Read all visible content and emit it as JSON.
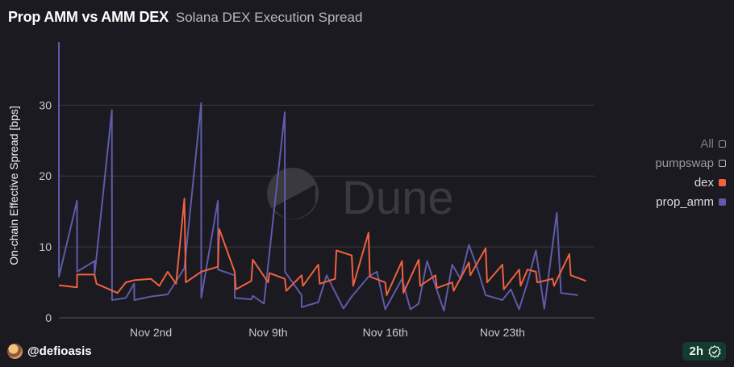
{
  "header": {
    "title": "Prop AMM vs AMM DEX",
    "subtitle": "Solana DEX Execution Spread"
  },
  "watermark": {
    "text": "Dune"
  },
  "legend": {
    "all": "All",
    "items": [
      "pumpswap",
      "dex",
      "prop_amm"
    ]
  },
  "footer": {
    "username": "@defioasis",
    "badge": "2h",
    "badge_icon": "check-shield-icon"
  },
  "colors": {
    "dex": "#f06140",
    "prop_amm": "#5f5ba8",
    "pumpswap": "#b8b8c4"
  },
  "chart_data": {
    "type": "line",
    "ylabel": "On-chain Effective Spread [bps]",
    "xlabel": "",
    "ylim": [
      0,
      38
    ],
    "yticks": [
      0,
      10,
      20,
      30
    ],
    "xlim": [
      "2025-10-28",
      "2025-11-29"
    ],
    "xticks": [
      {
        "date": "2025-11-02",
        "label": "Nov 2nd"
      },
      {
        "date": "2025-11-09",
        "label": "Nov 9th"
      },
      {
        "date": "2025-11-16",
        "label": "Nov 16th"
      },
      {
        "date": "2025-11-23",
        "label": "Nov 23th"
      }
    ],
    "grid": true,
    "legend_position": "right",
    "series": [
      {
        "name": "prop_amm",
        "points": [
          [
            "2025-10-28 00:00",
            38.9
          ],
          [
            "2025-10-28 00:10",
            5.8
          ],
          [
            "2025-10-29 02:00",
            16.5
          ],
          [
            "2025-10-29 02:10",
            6.5
          ],
          [
            "2025-10-30 03:00",
            8.0
          ],
          [
            "2025-10-30 03:10",
            6.0
          ],
          [
            "2025-10-31 04:00",
            29.3
          ],
          [
            "2025-10-31 04:10",
            2.5
          ],
          [
            "2025-11-01 00:00",
            2.8
          ],
          [
            "2025-11-01 12:00",
            4.8
          ],
          [
            "2025-11-01 12:10",
            2.5
          ],
          [
            "2025-11-02 12:00",
            3.0
          ],
          [
            "2025-11-03 12:00",
            3.3
          ],
          [
            "2025-11-04 12:00",
            7.0
          ],
          [
            "2025-11-05 12:00",
            30.3
          ],
          [
            "2025-11-05 12:10",
            2.8
          ],
          [
            "2025-11-06 12:00",
            16.5
          ],
          [
            "2025-11-06 12:10",
            6.8
          ],
          [
            "2025-11-07 12:00",
            6.0
          ],
          [
            "2025-11-07 12:10",
            2.8
          ],
          [
            "2025-11-08 12:00",
            2.6
          ],
          [
            "2025-11-08 14:00",
            3.1
          ],
          [
            "2025-11-09 06:00",
            2.0
          ],
          [
            "2025-11-10 12:00",
            29.0
          ],
          [
            "2025-11-10 12:10",
            6.5
          ],
          [
            "2025-11-11 12:00",
            3.2
          ],
          [
            "2025-11-11 12:10",
            1.5
          ],
          [
            "2025-11-12 12:00",
            2.2
          ],
          [
            "2025-11-13 00:00",
            6.0
          ],
          [
            "2025-11-14 00:00",
            1.3
          ],
          [
            "2025-11-14 12:00",
            3.0
          ],
          [
            "2025-11-15 12:00",
            5.8
          ],
          [
            "2025-11-16 00:00",
            6.5
          ],
          [
            "2025-11-16 12:00",
            1.2
          ],
          [
            "2025-11-17 12:00",
            5.5
          ],
          [
            "2025-11-18 00:00",
            1.2
          ],
          [
            "2025-11-18 12:00",
            2.0
          ],
          [
            "2025-11-19 00:00",
            8.0
          ],
          [
            "2025-11-20 00:00",
            1.0
          ],
          [
            "2025-11-20 12:00",
            7.5
          ],
          [
            "2025-11-21 00:00",
            5.5
          ],
          [
            "2025-11-21 12:00",
            10.3
          ],
          [
            "2025-11-22 00:00",
            7.0
          ],
          [
            "2025-11-22 12:00",
            3.2
          ],
          [
            "2025-11-23 12:00",
            2.5
          ],
          [
            "2025-11-24 00:00",
            4.0
          ],
          [
            "2025-11-24 12:00",
            1.2
          ],
          [
            "2025-11-25 00:00",
            5.0
          ],
          [
            "2025-11-25 12:00",
            9.5
          ],
          [
            "2025-11-26 00:00",
            1.3
          ],
          [
            "2025-11-26 18:00",
            14.8
          ],
          [
            "2025-11-27 00:00",
            3.5
          ],
          [
            "2025-11-28 00:00",
            3.2
          ]
        ]
      },
      {
        "name": "dex",
        "points": [
          [
            "2025-10-28 00:00",
            4.6
          ],
          [
            "2025-10-29 02:00",
            4.3
          ],
          [
            "2025-10-29 02:10",
            6.1
          ],
          [
            "2025-10-30 03:00",
            6.1
          ],
          [
            "2025-10-30 06:00",
            4.8
          ],
          [
            "2025-10-31 12:00",
            3.5
          ],
          [
            "2025-11-01 00:00",
            5.0
          ],
          [
            "2025-11-01 12:00",
            5.3
          ],
          [
            "2025-11-02 12:00",
            5.5
          ],
          [
            "2025-11-03 00:00",
            4.5
          ],
          [
            "2025-11-03 12:00",
            6.5
          ],
          [
            "2025-11-04 00:00",
            4.8
          ],
          [
            "2025-11-04 12:00",
            16.8
          ],
          [
            "2025-11-04 14:00",
            5.0
          ],
          [
            "2025-11-05 12:00",
            6.5
          ],
          [
            "2025-11-06 12:00",
            7.2
          ],
          [
            "2025-11-06 14:00",
            12.5
          ],
          [
            "2025-11-07 12:00",
            6.5
          ],
          [
            "2025-11-07 14:00",
            4.0
          ],
          [
            "2025-11-08 12:00",
            5.2
          ],
          [
            "2025-11-08 14:00",
            8.2
          ],
          [
            "2025-11-09 12:00",
            5.0
          ],
          [
            "2025-11-09 14:00",
            6.3
          ],
          [
            "2025-11-10 12:00",
            5.5
          ],
          [
            "2025-11-10 14:00",
            3.8
          ],
          [
            "2025-11-11 12:00",
            6.0
          ],
          [
            "2025-11-11 14:00",
            4.5
          ],
          [
            "2025-11-12 12:00",
            7.5
          ],
          [
            "2025-11-12 14:00",
            4.8
          ],
          [
            "2025-11-13 12:00",
            5.5
          ],
          [
            "2025-11-13 14:00",
            9.5
          ],
          [
            "2025-11-14 12:00",
            8.8
          ],
          [
            "2025-11-14 14:00",
            4.5
          ],
          [
            "2025-11-15 12:00",
            12.0
          ],
          [
            "2025-11-15 14:00",
            5.8
          ],
          [
            "2025-11-16 12:00",
            5.0
          ],
          [
            "2025-11-16 14:00",
            3.2
          ],
          [
            "2025-11-17 12:00",
            8.0
          ],
          [
            "2025-11-17 14:00",
            3.5
          ],
          [
            "2025-11-18 12:00",
            8.2
          ],
          [
            "2025-11-18 14:00",
            4.5
          ],
          [
            "2025-11-19 12:00",
            6.0
          ],
          [
            "2025-11-19 14:00",
            4.2
          ],
          [
            "2025-11-20 12:00",
            5.0
          ],
          [
            "2025-11-20 14:00",
            3.8
          ],
          [
            "2025-11-21 12:00",
            7.8
          ],
          [
            "2025-11-21 14:00",
            6.0
          ],
          [
            "2025-11-22 12:00",
            9.8
          ],
          [
            "2025-11-22 14:00",
            5.0
          ],
          [
            "2025-11-23 12:00",
            7.5
          ],
          [
            "2025-11-23 14:00",
            4.0
          ],
          [
            "2025-11-24 12:00",
            6.8
          ],
          [
            "2025-11-24 14:00",
            4.5
          ],
          [
            "2025-11-25 00:00",
            6.8
          ],
          [
            "2025-11-25 12:00",
            6.5
          ],
          [
            "2025-11-25 14:00",
            5.0
          ],
          [
            "2025-11-26 12:00",
            5.5
          ],
          [
            "2025-11-26 14:00",
            4.5
          ],
          [
            "2025-11-27 12:00",
            9.0
          ],
          [
            "2025-11-27 14:00",
            6.0
          ],
          [
            "2025-11-28 12:00",
            5.2
          ]
        ]
      }
    ]
  }
}
